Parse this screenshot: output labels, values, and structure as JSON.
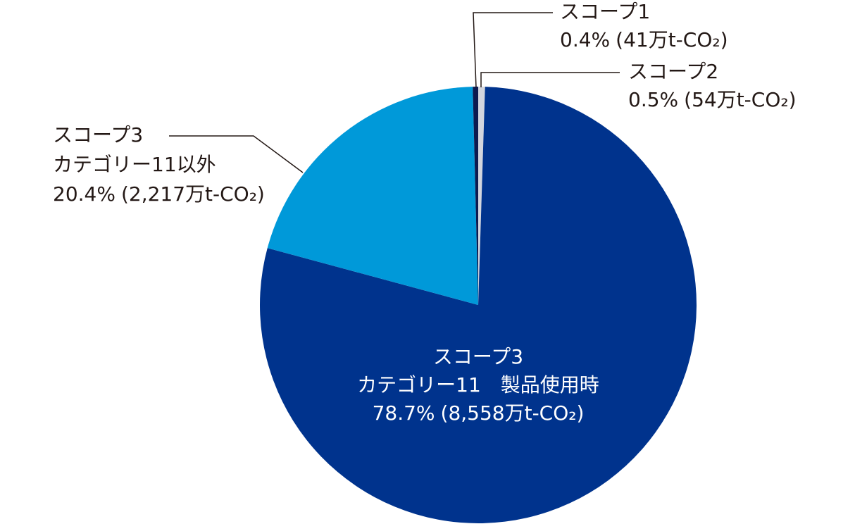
{
  "chart_data": {
    "type": "pie",
    "categories": [
      [
        "スコープ2"
      ],
      [
        "スコープ3",
        "カテゴリー11　製品使用時"
      ],
      [
        "スコープ3",
        "カテゴリー11以外"
      ],
      [
        "スコープ1"
      ]
    ],
    "values": [
      0.5,
      78.7,
      20.4,
      0.4
    ],
    "value_labels": [
      "0.5%",
      "78.7%",
      "20.4%",
      "0.4%"
    ],
    "amount_labels": [
      "(54万t-CO₂)",
      "(8,558万t-CO₂)",
      "(2,217万t-CO₂)",
      "(41万t-CO₂)"
    ],
    "colors": [
      "#d3d6de",
      "#00338d",
      "#0099d9",
      "#0d1a4f"
    ]
  }
}
